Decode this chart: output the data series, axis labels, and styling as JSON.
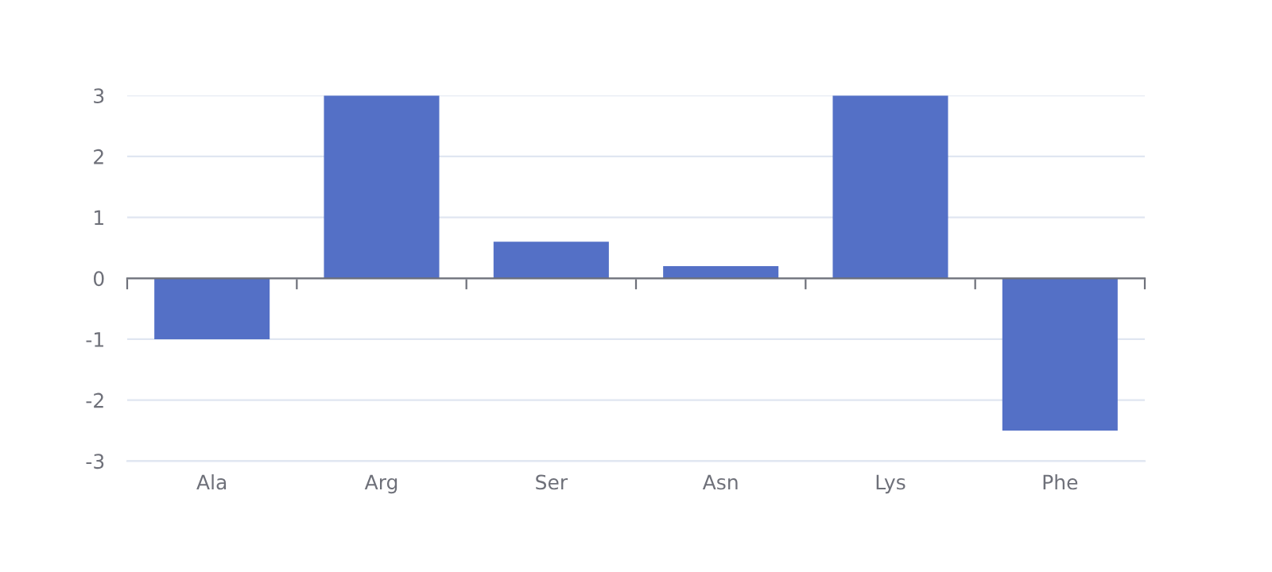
{
  "chart_data": {
    "type": "bar",
    "categories": [
      "Ala",
      "Arg",
      "Ser",
      "Asn",
      "Lys",
      "Phe"
    ],
    "values": [
      -1,
      3,
      0.6,
      0.2,
      3,
      -2.5
    ],
    "color": "#5470c6",
    "ylim": [
      -3,
      3
    ],
    "yticks": [
      -3,
      -2,
      -1,
      0,
      1,
      2,
      3
    ],
    "grid": "y",
    "legend": false
  }
}
